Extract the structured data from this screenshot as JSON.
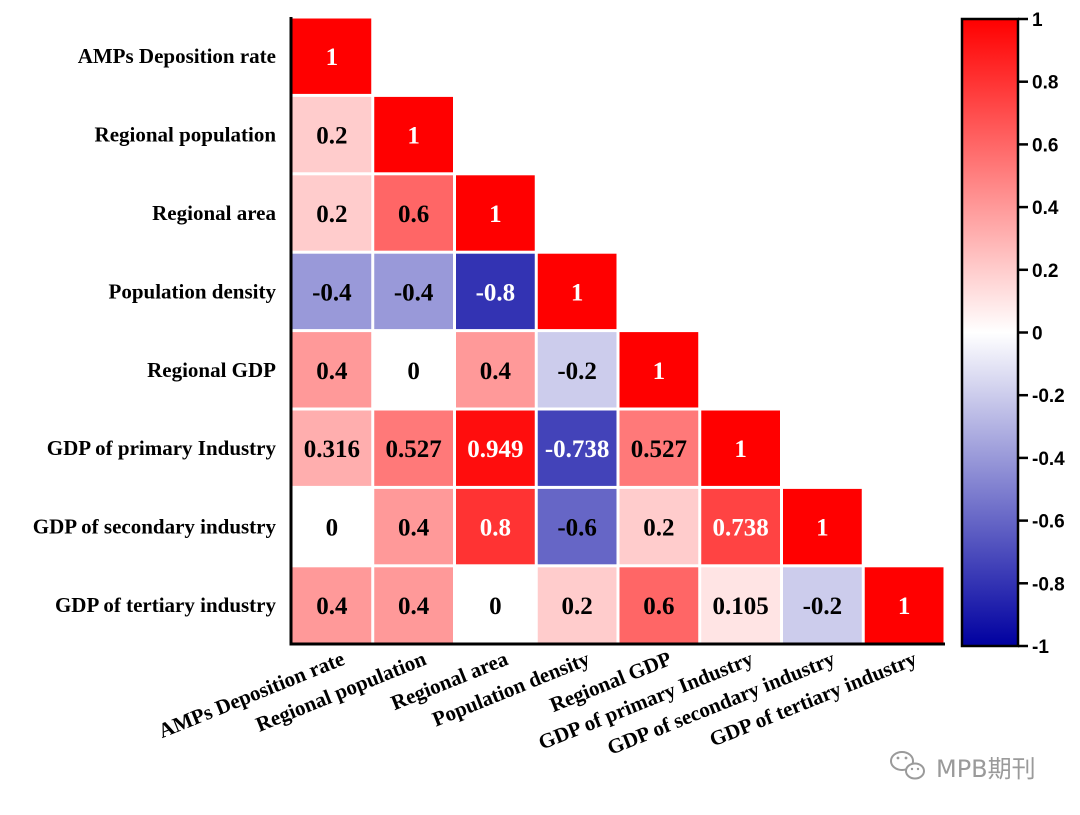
{
  "chart_data": {
    "type": "heatmap",
    "layout": "lower-triangle",
    "variables": [
      "AMPs Deposition rate",
      "Regional population",
      "Regional area",
      "Population density",
      "Regional GDP",
      "GDP of primary Industry",
      "GDP of secondary industry",
      "GDP of tertiary industry"
    ],
    "matrix": [
      [
        1
      ],
      [
        0.2,
        1
      ],
      [
        0.2,
        0.6,
        1
      ],
      [
        -0.4,
        -0.4,
        -0.8,
        1
      ],
      [
        0.4,
        0,
        0.4,
        -0.2,
        1
      ],
      [
        0.316,
        0.527,
        0.949,
        -0.738,
        0.527,
        1
      ],
      [
        0,
        0.4,
        0.8,
        -0.6,
        0.2,
        0.738,
        1
      ],
      [
        0.4,
        0.4,
        0,
        0.2,
        0.6,
        0.105,
        -0.2,
        1
      ]
    ],
    "cell_labels": [
      [
        "1"
      ],
      [
        "0.2",
        "1"
      ],
      [
        "0.2",
        "0.6",
        "1"
      ],
      [
        "-0.4",
        "-0.4",
        "-0.8",
        "1"
      ],
      [
        "0.4",
        "0",
        "0.4",
        "-0.2",
        "1"
      ],
      [
        "0.316",
        "0.527",
        "0.949",
        "-0.738",
        "0.527",
        "1"
      ],
      [
        "0",
        "0.4",
        "0.8",
        "-0.6",
        "0.2",
        "0.738",
        "1"
      ],
      [
        "0.4",
        "0.4",
        "0",
        "0.2",
        "0.6",
        "0.105",
        "-0.2",
        "1"
      ]
    ],
    "colorbar": {
      "range": [
        -1,
        1
      ],
      "ticks": [
        "1",
        "0.8",
        "0.6",
        "0.4",
        "0.2",
        "0",
        "-0.2",
        "-0.4",
        "-0.6",
        "-0.8",
        "-1"
      ],
      "colors": {
        "high": "#ff0000",
        "mid": "#ffffff",
        "low": "#0000a0"
      }
    },
    "grid": true,
    "legend": "colorbar-right"
  },
  "watermark": {
    "text": "MPB期刊",
    "icon": "wechat-icon"
  }
}
